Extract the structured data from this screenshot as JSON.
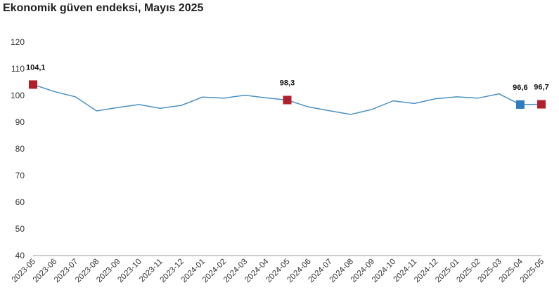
{
  "title": "Ekonomik güven endeksi, Mayıs 2025",
  "colors": {
    "line": "#4a90c4",
    "highlight": "#b0202a",
    "last_month": "#2e7bbf",
    "axis": "#999999"
  },
  "chart_data": {
    "type": "line",
    "title": "Ekonomik güven endeksi, Mayıs 2025",
    "xlabel": "",
    "ylabel": "",
    "ylim": [
      40,
      120
    ],
    "yticks": [
      40,
      50,
      60,
      70,
      80,
      90,
      100,
      110,
      120
    ],
    "grid": false,
    "categories": [
      "2023-05",
      "2023-06",
      "2023-07",
      "2023-08",
      "2023-09",
      "2023-10",
      "2023-11",
      "2023-12",
      "2024-01",
      "2024-02",
      "2024-03",
      "2024-04",
      "2024-05",
      "2024-06",
      "2024-07",
      "2024-08",
      "2024-09",
      "2024-10",
      "2024-11",
      "2024-12",
      "2025-01",
      "2025-02",
      "2025-03",
      "2025-04",
      "2025-05"
    ],
    "series": [
      {
        "values": [
          104.1,
          101.5,
          99.5,
          94.2,
          95.5,
          96.6,
          95.2,
          96.3,
          99.4,
          99.0,
          100.1,
          99.1,
          98.3,
          95.7,
          94.3,
          92.9,
          94.8,
          98.0,
          97.0,
          98.8,
          99.5,
          99.0,
          100.6,
          96.6,
          96.7
        ]
      }
    ],
    "annotations": [
      {
        "category": "2023-05",
        "text": "104,1",
        "marker": "highlight"
      },
      {
        "category": "2024-05",
        "text": "98,3",
        "marker": "highlight"
      },
      {
        "category": "2025-04",
        "text": "96,6",
        "marker": "last_month"
      },
      {
        "category": "2025-05",
        "text": "96,7",
        "marker": "highlight"
      }
    ]
  }
}
